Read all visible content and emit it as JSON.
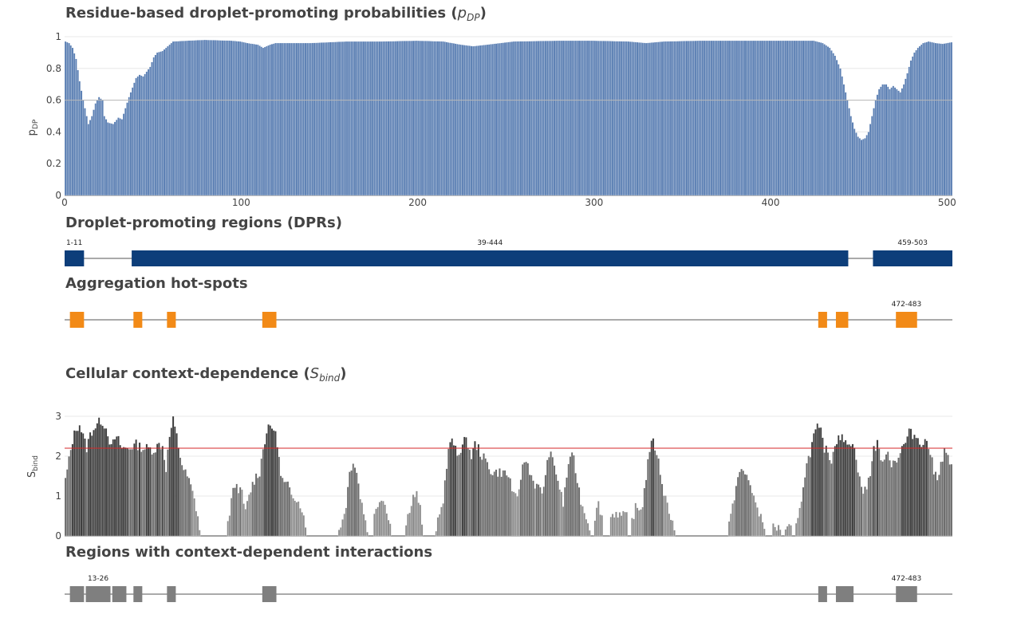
{
  "panels": {
    "pdp": {
      "title": "Residue-based droplet-promoting probabilities",
      "title_symbol": "p",
      "title_symbol_sub": "DP",
      "ylabel_main": "p",
      "ylabel_sub": "DP"
    },
    "dpr": {
      "title": "Droplet-promoting regions (DPRs)"
    },
    "hotspots": {
      "title": "Aggregation hot-spots"
    },
    "sbind": {
      "title": "Cellular context-dependence",
      "title_symbol": "S",
      "title_symbol_sub": "bind",
      "ylabel_main": "S",
      "ylabel_sub": "bind"
    },
    "context": {
      "title": "Regions with context-dependent interactions"
    }
  },
  "chart_data": [
    {
      "type": "bar",
      "id": "pdp",
      "title": "Residue-based droplet-promoting probabilities (pDP)",
      "ylabel": "pDP",
      "xlim": [
        0,
        503
      ],
      "ylim": [
        0,
        1
      ],
      "xticks": [
        0,
        100,
        200,
        300,
        400,
        500
      ],
      "yticks": [
        0,
        0.2,
        0.4,
        0.6,
        0.8,
        1
      ],
      "ytick_labels": [
        "0",
        "0.2",
        "0.4",
        "0.6",
        "0.8",
        "1"
      ],
      "threshold": 0.6,
      "bar_color": "#5b7fb3",
      "grid": true,
      "profile_anchors": [
        [
          1,
          0.97
        ],
        [
          3,
          0.96
        ],
        [
          5,
          0.93
        ],
        [
          7,
          0.86
        ],
        [
          9,
          0.72
        ],
        [
          11,
          0.6
        ],
        [
          13,
          0.5
        ],
        [
          14,
          0.45
        ],
        [
          16,
          0.5
        ],
        [
          18,
          0.58
        ],
        [
          20,
          0.62
        ],
        [
          22,
          0.6
        ],
        [
          23,
          0.5
        ],
        [
          25,
          0.46
        ],
        [
          28,
          0.45
        ],
        [
          31,
          0.49
        ],
        [
          33,
          0.48
        ],
        [
          35,
          0.55
        ],
        [
          37,
          0.62
        ],
        [
          39,
          0.68
        ],
        [
          41,
          0.74
        ],
        [
          43,
          0.76
        ],
        [
          45,
          0.75
        ],
        [
          47,
          0.78
        ],
        [
          49,
          0.81
        ],
        [
          51,
          0.87
        ],
        [
          53,
          0.9
        ],
        [
          56,
          0.91
        ],
        [
          58,
          0.93
        ],
        [
          60,
          0.95
        ],
        [
          62,
          0.97
        ],
        [
          70,
          0.975
        ],
        [
          80,
          0.98
        ],
        [
          95,
          0.975
        ],
        [
          100,
          0.97
        ],
        [
          104,
          0.96
        ],
        [
          110,
          0.95
        ],
        [
          113,
          0.93
        ],
        [
          117,
          0.95
        ],
        [
          120,
          0.96
        ],
        [
          140,
          0.96
        ],
        [
          160,
          0.97
        ],
        [
          180,
          0.97
        ],
        [
          200,
          0.975
        ],
        [
          215,
          0.97
        ],
        [
          225,
          0.95
        ],
        [
          232,
          0.94
        ],
        [
          240,
          0.95
        ],
        [
          255,
          0.97
        ],
        [
          280,
          0.975
        ],
        [
          300,
          0.975
        ],
        [
          320,
          0.97
        ],
        [
          330,
          0.96
        ],
        [
          340,
          0.97
        ],
        [
          360,
          0.975
        ],
        [
          400,
          0.975
        ],
        [
          425,
          0.975
        ],
        [
          430,
          0.96
        ],
        [
          434,
          0.93
        ],
        [
          437,
          0.88
        ],
        [
          440,
          0.8
        ],
        [
          442,
          0.7
        ],
        [
          444,
          0.6
        ],
        [
          446,
          0.5
        ],
        [
          448,
          0.42
        ],
        [
          450,
          0.37
        ],
        [
          452,
          0.35
        ],
        [
          454,
          0.36
        ],
        [
          456,
          0.4
        ],
        [
          458,
          0.5
        ],
        [
          460,
          0.6
        ],
        [
          462,
          0.67
        ],
        [
          464,
          0.7
        ],
        [
          466,
          0.7
        ],
        [
          468,
          0.67
        ],
        [
          470,
          0.69
        ],
        [
          472,
          0.67
        ],
        [
          474,
          0.65
        ],
        [
          476,
          0.7
        ],
        [
          478,
          0.77
        ],
        [
          480,
          0.85
        ],
        [
          482,
          0.9
        ],
        [
          484,
          0.93
        ],
        [
          487,
          0.96
        ],
        [
          490,
          0.97
        ],
        [
          494,
          0.96
        ],
        [
          498,
          0.955
        ],
        [
          503,
          0.965
        ]
      ]
    },
    {
      "type": "bar",
      "id": "sbind",
      "title": "Cellular context-dependence (Sbind)",
      "ylabel": "Sbind",
      "xlim": [
        0,
        503
      ],
      "ylim": [
        0,
        3
      ],
      "yticks": [
        0,
        1,
        2,
        3
      ],
      "ytick_labels": [
        "0",
        "1",
        "2",
        "3"
      ],
      "threshold": 2.2,
      "threshold_color": "#d62728",
      "bar_color": "#555555",
      "grid": true,
      "profile_anchors": [
        [
          1,
          1.4
        ],
        [
          3,
          1.9
        ],
        [
          5,
          2.4
        ],
        [
          7,
          2.7
        ],
        [
          9,
          2.8
        ],
        [
          11,
          2.5
        ],
        [
          13,
          2.2
        ],
        [
          15,
          2.55
        ],
        [
          17,
          2.7
        ],
        [
          19,
          2.8
        ],
        [
          21,
          2.9
        ],
        [
          23,
          2.8
        ],
        [
          25,
          2.6
        ],
        [
          27,
          2.2
        ],
        [
          29,
          2.45
        ],
        [
          31,
          2.4
        ],
        [
          33,
          2.2
        ],
        [
          35,
          2.2
        ],
        [
          37,
          2.2
        ],
        [
          39,
          2.25
        ],
        [
          41,
          2.3
        ],
        [
          43,
          2.25
        ],
        [
          45,
          2.2
        ],
        [
          48,
          2.2
        ],
        [
          51,
          2.15
        ],
        [
          54,
          2.3
        ],
        [
          56,
          2.25
        ],
        [
          58,
          1.7
        ],
        [
          60,
          2.5
        ],
        [
          62,
          2.9
        ],
        [
          64,
          2.5
        ],
        [
          66,
          2.0
        ],
        [
          68,
          1.65
        ],
        [
          70,
          1.5
        ],
        [
          72,
          1.25
        ],
        [
          74,
          0.9
        ],
        [
          76,
          0.5
        ],
        [
          77,
          0.15
        ],
        [
          78,
          0
        ],
        [
          92,
          0
        ],
        [
          93,
          0.3
        ],
        [
          95,
          0.9
        ],
        [
          97,
          1.3
        ],
        [
          99,
          1.2
        ],
        [
          101,
          1.05
        ],
        [
          103,
          0.6
        ],
        [
          105,
          1.0
        ],
        [
          107,
          1.3
        ],
        [
          109,
          1.5
        ],
        [
          111,
          1.6
        ],
        [
          113,
          2.2
        ],
        [
          115,
          2.6
        ],
        [
          117,
          2.75
        ],
        [
          119,
          2.7
        ],
        [
          121,
          2.35
        ],
        [
          123,
          1.5
        ],
        [
          125,
          1.3
        ],
        [
          127,
          1.25
        ],
        [
          129,
          1.1
        ],
        [
          131,
          1.0
        ],
        [
          133,
          0.85
        ],
        [
          135,
          0.7
        ],
        [
          137,
          0.2
        ],
        [
          138,
          0
        ],
        [
          155,
          0
        ],
        [
          156,
          0.2
        ],
        [
          158,
          0.4
        ],
        [
          160,
          0.8
        ],
        [
          162,
          1.6
        ],
        [
          164,
          1.9
        ],
        [
          166,
          1.6
        ],
        [
          168,
          1.0
        ],
        [
          170,
          0.6
        ],
        [
          172,
          0.2
        ],
        [
          173,
          0
        ],
        [
          175,
          0
        ],
        [
          176,
          0.5
        ],
        [
          178,
          0.8
        ],
        [
          180,
          1.0
        ],
        [
          182,
          0.8
        ],
        [
          184,
          0.5
        ],
        [
          185,
          0.3
        ],
        [
          186,
          0
        ],
        [
          193,
          0
        ],
        [
          194,
          0.3
        ],
        [
          196,
          0.7
        ],
        [
          198,
          1.0
        ],
        [
          200,
          1.05
        ],
        [
          202,
          0.7
        ],
        [
          203,
          0.2
        ],
        [
          204,
          0
        ],
        [
          210,
          0
        ],
        [
          211,
          0.2
        ],
        [
          213,
          0.5
        ],
        [
          215,
          0.9
        ],
        [
          217,
          1.8
        ],
        [
          219,
          2.4
        ],
        [
          221,
          2.3
        ],
        [
          223,
          2.0
        ],
        [
          225,
          2.2
        ],
        [
          227,
          2.4
        ],
        [
          229,
          2.3
        ],
        [
          231,
          2.0
        ],
        [
          233,
          2.3
        ],
        [
          235,
          2.2
        ],
        [
          237,
          2.0
        ],
        [
          239,
          1.9
        ],
        [
          241,
          1.7
        ],
        [
          243,
          1.6
        ],
        [
          246,
          1.6
        ],
        [
          249,
          1.6
        ],
        [
          251,
          1.55
        ],
        [
          253,
          1.4
        ],
        [
          255,
          1.0
        ],
        [
          257,
          0.9
        ],
        [
          259,
          1.5
        ],
        [
          261,
          1.9
        ],
        [
          263,
          1.8
        ],
        [
          265,
          1.5
        ],
        [
          267,
          1.3
        ],
        [
          269,
          1.2
        ],
        [
          271,
          1.1
        ],
        [
          273,
          1.5
        ],
        [
          275,
          2.1
        ],
        [
          277,
          1.9
        ],
        [
          279,
          1.6
        ],
        [
          281,
          1.2
        ],
        [
          283,
          0.8
        ],
        [
          285,
          1.5
        ],
        [
          287,
          2.05
        ],
        [
          289,
          1.9
        ],
        [
          291,
          1.4
        ],
        [
          293,
          0.9
        ],
        [
          295,
          0.6
        ],
        [
          297,
          0.4
        ],
        [
          298,
          0.2
        ],
        [
          299,
          0
        ],
        [
          300,
          0
        ],
        [
          301,
          0.5
        ],
        [
          303,
          0.8
        ],
        [
          305,
          0.5
        ],
        [
          306,
          0
        ],
        [
          309,
          0
        ],
        [
          310,
          0.5
        ],
        [
          313,
          0.6
        ],
        [
          316,
          0.5
        ],
        [
          319,
          0.5
        ],
        [
          320,
          0
        ],
        [
          321,
          0
        ],
        [
          322,
          0.4
        ],
        [
          324,
          0.7
        ],
        [
          326,
          0.65
        ],
        [
          328,
          0.8
        ],
        [
          330,
          1.5
        ],
        [
          332,
          2.2
        ],
        [
          334,
          2.35
        ],
        [
          336,
          2.1
        ],
        [
          338,
          1.6
        ],
        [
          340,
          1.1
        ],
        [
          342,
          0.8
        ],
        [
          344,
          0.5
        ],
        [
          346,
          0.2
        ],
        [
          347,
          0
        ],
        [
          376,
          0
        ],
        [
          377,
          0.3
        ],
        [
          379,
          0.7
        ],
        [
          381,
          1.3
        ],
        [
          383,
          1.6
        ],
        [
          385,
          1.6
        ],
        [
          387,
          1.5
        ],
        [
          389,
          1.3
        ],
        [
          391,
          1.0
        ],
        [
          393,
          0.6
        ],
        [
          395,
          0.5
        ],
        [
          397,
          0.3
        ],
        [
          398,
          0
        ],
        [
          401,
          0
        ],
        [
          402,
          0.2
        ],
        [
          406,
          0.2
        ],
        [
          407,
          0
        ],
        [
          408,
          0
        ],
        [
          409,
          0.2
        ],
        [
          412,
          0.2
        ],
        [
          413,
          0
        ],
        [
          414,
          0
        ],
        [
          415,
          0.2
        ],
        [
          417,
          0.6
        ],
        [
          419,
          1.3
        ],
        [
          421,
          1.8
        ],
        [
          423,
          2.1
        ],
        [
          425,
          2.5
        ],
        [
          427,
          2.7
        ],
        [
          429,
          2.6
        ],
        [
          431,
          2.2
        ],
        [
          433,
          2.1
        ],
        [
          435,
          1.9
        ],
        [
          437,
          2.3
        ],
        [
          439,
          2.55
        ],
        [
          441,
          2.45
        ],
        [
          443,
          2.3
        ],
        [
          445,
          2.4
        ],
        [
          447,
          2.3
        ],
        [
          449,
          2.0
        ],
        [
          451,
          1.4
        ],
        [
          453,
          1.1
        ],
        [
          455,
          1.2
        ],
        [
          457,
          1.6
        ],
        [
          459,
          2.2
        ],
        [
          461,
          2.3
        ],
        [
          463,
          2.0
        ],
        [
          465,
          1.8
        ],
        [
          467,
          2.2
        ],
        [
          469,
          1.8
        ],
        [
          471,
          1.9
        ],
        [
          473,
          2.0
        ],
        [
          475,
          2.2
        ],
        [
          477,
          2.35
        ],
        [
          479,
          2.6
        ],
        [
          481,
          2.55
        ],
        [
          483,
          2.5
        ],
        [
          485,
          2.4
        ],
        [
          487,
          2.3
        ],
        [
          489,
          2.4
        ],
        [
          491,
          2.1
        ],
        [
          493,
          1.6
        ],
        [
          495,
          1.5
        ],
        [
          497,
          1.8
        ],
        [
          499,
          2.1
        ],
        [
          501,
          2.0
        ],
        [
          503,
          1.7
        ]
      ]
    }
  ],
  "dpr_segments": [
    {
      "start": 1,
      "end": 11,
      "label": "1-11"
    },
    {
      "start": 39,
      "end": 444,
      "label": "39-444"
    },
    {
      "start": 459,
      "end": 503,
      "label": "459-503"
    }
  ],
  "hotspot_segments": [
    {
      "start": 4,
      "end": 11,
      "label": ""
    },
    {
      "start": 40,
      "end": 44,
      "label": ""
    },
    {
      "start": 59,
      "end": 63,
      "label": ""
    },
    {
      "start": 113,
      "end": 120,
      "label": ""
    },
    {
      "start": 428,
      "end": 432,
      "label": ""
    },
    {
      "start": 438,
      "end": 444,
      "label": ""
    },
    {
      "start": 472,
      "end": 483,
      "label": "472-483"
    }
  ],
  "context_segments": [
    {
      "start": 4,
      "end": 11,
      "label": ""
    },
    {
      "start": 13,
      "end": 26,
      "label": "13-26"
    },
    {
      "start": 28,
      "end": 35,
      "label": ""
    },
    {
      "start": 40,
      "end": 44,
      "label": ""
    },
    {
      "start": 59,
      "end": 63,
      "label": ""
    },
    {
      "start": 113,
      "end": 120,
      "label": ""
    },
    {
      "start": 428,
      "end": 432,
      "label": ""
    },
    {
      "start": 438,
      "end": 447,
      "label": ""
    },
    {
      "start": 472,
      "end": 483,
      "label": "472-483"
    }
  ],
  "colors": {
    "pdp_bar": "#5b7fb3",
    "dpr": "#0d3e7a",
    "hotspot": "#f28a17",
    "context": "#7f7f7f",
    "sbind_bar": "#555555",
    "sbind_threshold": "#d62728",
    "axis_text": "#444444"
  }
}
